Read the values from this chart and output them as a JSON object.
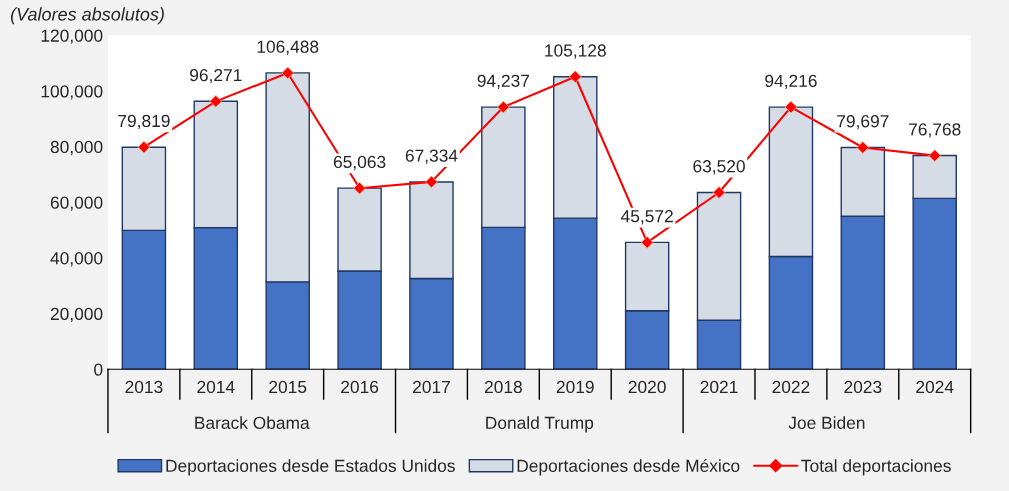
{
  "chart_data": {
    "type": "bar",
    "title": "(Valores absolutos)",
    "categories": [
      "2013",
      "2014",
      "2015",
      "2016",
      "2017",
      "2018",
      "2019",
      "2020",
      "2021",
      "2022",
      "2023",
      "2024"
    ],
    "stacked": true,
    "series": [
      {
        "name": "Deportaciones desde Estados Unidos",
        "color": "#4472c4",
        "values": [
          49900,
          50900,
          31400,
          35300,
          32600,
          51000,
          54300,
          21000,
          17600,
          40500,
          55000,
          61400
        ]
      },
      {
        "name": "Deportaciones desde México",
        "color": "#d6dce5",
        "values": [
          29900,
          45400,
          75100,
          29800,
          34700,
          43200,
          50800,
          24600,
          45900,
          53700,
          24700,
          15400
        ]
      },
      {
        "name": "Total deportaciones",
        "type": "line",
        "color": "#ff0000",
        "marker": "diamond",
        "values": [
          79819,
          96271,
          106488,
          65063,
          67334,
          94237,
          105128,
          45572,
          63520,
          94216,
          79697,
          76768
        ],
        "value_labels": [
          "79,819",
          "96,271",
          "106,488",
          "65,063",
          "67,334",
          "94,237",
          "105,128",
          "45,572",
          "63,520",
          "94,216",
          "79,697",
          "76,768"
        ]
      }
    ],
    "ylim": [
      0,
      120000
    ],
    "yticks": [
      0,
      {
        "value": 20000,
        "label": "20,000"
      },
      {
        "value": 40000,
        "label": "40,000"
      },
      {
        "value": 60000,
        "label": "60,000"
      },
      {
        "value": 80000,
        "label": "80,000"
      },
      {
        "value": 100000,
        "label": "100,000"
      },
      {
        "value": 120000,
        "label": "120,000"
      }
    ],
    "annotations": [
      "Barack Obama",
      "Donald Trump",
      "Joe Biden"
    ],
    "grid": false,
    "legend": "bottom"
  }
}
